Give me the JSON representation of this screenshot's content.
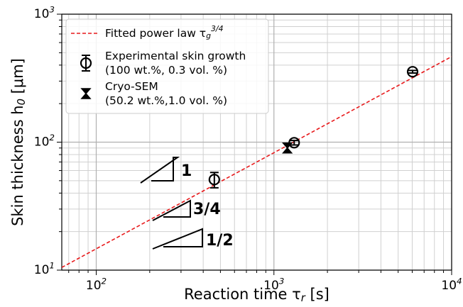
{
  "chart_data": {
    "type": "scatter",
    "xlabel": "Reaction time τ_{r} [s]",
    "ylabel": "Skin thickness h_{0} [μm]",
    "xscale": "log",
    "yscale": "log",
    "grid": true,
    "legend": "upper left",
    "xlim": [
      64,
      10000
    ],
    "ylim": [
      10,
      1000
    ],
    "xticks": [
      {
        "value": 100,
        "label": "10^{2}"
      },
      {
        "value": 1000,
        "label": "10^{3}"
      },
      {
        "value": 10000,
        "label": "10^{4}"
      }
    ],
    "yticks": [
      {
        "value": 10,
        "label": "10^{1}"
      },
      {
        "value": 100,
        "label": "10^{2}"
      },
      {
        "value": 1000,
        "label": "10^{3}"
      }
    ],
    "series": [
      {
        "name": "Fitted power law τ_{g}^{3/4}",
        "kind": "line",
        "color": "#e8191b",
        "x": [
          64,
          10000
        ],
        "values": [
          10.5,
          466
        ]
      },
      {
        "name": "Experimental skin growth\n(100 wt.%, 0.3 vol. %)",
        "kind": "circle",
        "color": "#000000",
        "x": [
          462,
          1300,
          6030
        ],
        "values": [
          51,
          99,
          355
        ],
        "yerr": [
          7,
          4,
          8
        ]
      },
      {
        "name": "Cryo-SEM\n(50.2 wt.%,1.0 vol. %)",
        "kind": "hourglass",
        "color": "#000000",
        "x": [
          1190
        ],
        "values": [
          90
        ]
      }
    ],
    "annotations": [
      "1",
      "3/4",
      "1/2"
    ]
  }
}
